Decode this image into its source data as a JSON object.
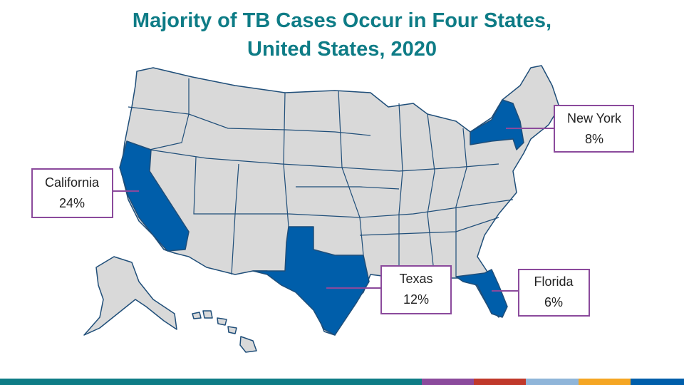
{
  "title": [
    "Majority of TB Cases Occur in Four States,",
    "United States, 2020"
  ],
  "callouts": [
    {
      "state": "California",
      "share": "24%"
    },
    {
      "state": "New York",
      "share": "8%"
    },
    {
      "state": "Texas",
      "share": "12%"
    },
    {
      "state": "Florida",
      "share": "6%"
    }
  ]
}
